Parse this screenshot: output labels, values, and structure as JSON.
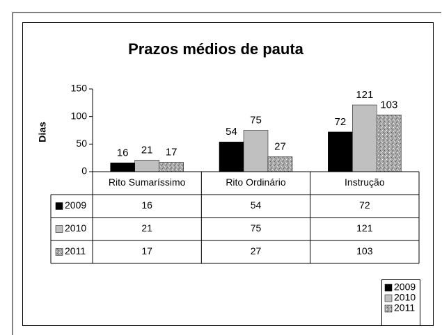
{
  "chart_data": {
    "type": "bar",
    "title": "Prazos médios de pauta",
    "y_label": "Dias",
    "categories": [
      "Rito Sumaríssimo",
      "Rito Ordinário",
      "Instrução"
    ],
    "series": [
      {
        "name": "2009",
        "color": "#000000",
        "values": [
          16,
          54,
          72
        ]
      },
      {
        "name": "2010",
        "color": "#c0c0c0",
        "values": [
          21,
          75,
          121
        ]
      },
      {
        "name": "2011",
        "color": "#a8a8a8",
        "pattern": "speckle",
        "values": [
          17,
          27,
          103
        ]
      }
    ],
    "ylim": [
      0,
      150
    ],
    "yticks": [
      0,
      50,
      100,
      150
    ],
    "grid": false,
    "data_labels": true,
    "data_table": true,
    "legend": "bottom-right"
  }
}
